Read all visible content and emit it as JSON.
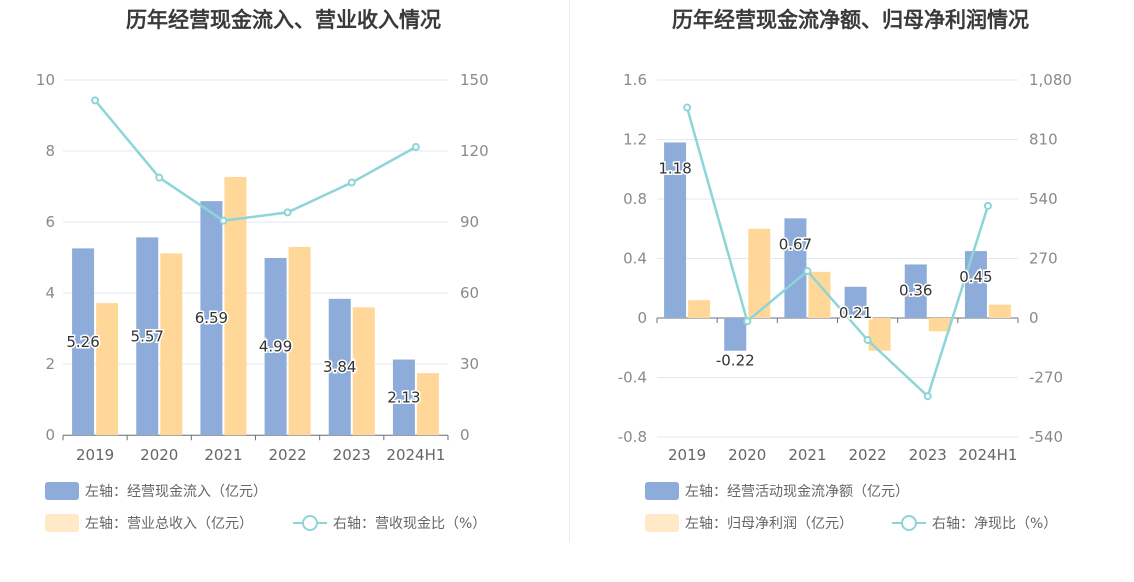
{
  "charts": [
    {
      "title": "历年经营现金流入、营业收入情况",
      "chart_data": {
        "type": "bar",
        "categories": [
          "2019",
          "2020",
          "2021",
          "2022",
          "2023",
          "2024H1"
        ],
        "y_left": {
          "ylim": [
            -0.05,
            10
          ],
          "ticks": [
            0,
            2,
            4,
            6,
            8,
            10
          ],
          "tick_labels": [
            "0",
            "2",
            "4",
            "6",
            "8",
            "10"
          ]
        },
        "y_right": {
          "ylim": [
            -0.75,
            150
          ],
          "ticks": [
            0,
            30,
            60,
            90,
            120,
            150
          ],
          "tick_labels": [
            "0",
            "30",
            "60",
            "90",
            "120",
            "150"
          ]
        },
        "series": [
          {
            "name": "左轴：经营现金流入（亿元）",
            "kind": "bar",
            "axis": "left",
            "color": "#8eacd9",
            "values": [
              5.26,
              5.57,
              6.59,
              4.99,
              3.84,
              2.13
            ],
            "labels": [
              "5.26",
              "5.57",
              "6.59",
              "4.99",
              "3.84",
              "2.13"
            ]
          },
          {
            "name": "左轴：营业总收入（亿元）",
            "kind": "bar",
            "axis": "left",
            "color": "#ffd899",
            "values": [
              3.72,
              5.12,
              7.27,
              5.3,
              3.6,
              1.75
            ]
          },
          {
            "name": "右轴：营收现金比（%）",
            "kind": "line",
            "axis": "right",
            "color": "#8dd5d7",
            "values": [
              141.4,
              108.8,
              90.6,
              94.1,
              106.7,
              121.7
            ]
          }
        ],
        "grid": true,
        "legend_position": "bottom-left"
      }
    },
    {
      "title": "历年经营现金流净额、归母净利润情况",
      "chart_data": {
        "type": "bar",
        "categories": [
          "2019",
          "2020",
          "2021",
          "2022",
          "2023",
          "2024H1"
        ],
        "y_left": {
          "ylim": [
            -0.8,
            1.6
          ],
          "ticks": [
            -0.8,
            -0.4,
            0,
            0.4,
            0.8,
            1.2,
            1.6
          ],
          "tick_labels": [
            "-0.8",
            "-0.4",
            "0",
            "0.4",
            "0.8",
            "1.2",
            "1.6"
          ]
        },
        "y_right": {
          "ylim": [
            -540,
            1080
          ],
          "ticks": [
            -540,
            -270,
            0,
            270,
            540,
            810,
            1080
          ],
          "tick_labels": [
            "-540",
            "-270",
            "0",
            "270",
            "540",
            "810",
            "1,080"
          ]
        },
        "series": [
          {
            "name": "左轴：经营活动现金流净额（亿元）",
            "kind": "bar",
            "axis": "left",
            "color": "#8eacd9",
            "values": [
              1.18,
              -0.22,
              0.67,
              0.21,
              0.36,
              0.45
            ],
            "labels": [
              "1.18",
              "-0.22",
              "0.67",
              "0.21",
              "0.36",
              "0.45"
            ]
          },
          {
            "name": "左轴：归母净利润（亿元）",
            "kind": "bar",
            "axis": "left",
            "color": "#ffd899",
            "values": [
              0.12,
              0.6,
              0.31,
              -0.22,
              -0.09,
              0.09
            ]
          },
          {
            "name": "右轴：净现比（%）",
            "kind": "line",
            "axis": "right",
            "color": "#8dd5d7",
            "values": [
              955,
              -15,
              213,
              -100,
              -355,
              509
            ]
          }
        ],
        "grid": true,
        "legend_position": "bottom-left"
      }
    }
  ]
}
